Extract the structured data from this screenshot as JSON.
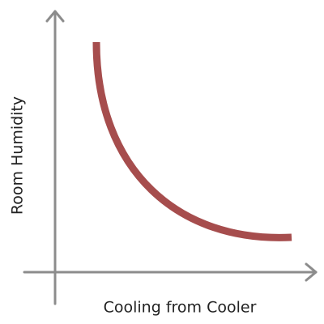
{
  "x_axis_label": "Cooling from Cooler",
  "y_axis_label": "Room Humidity"
}
